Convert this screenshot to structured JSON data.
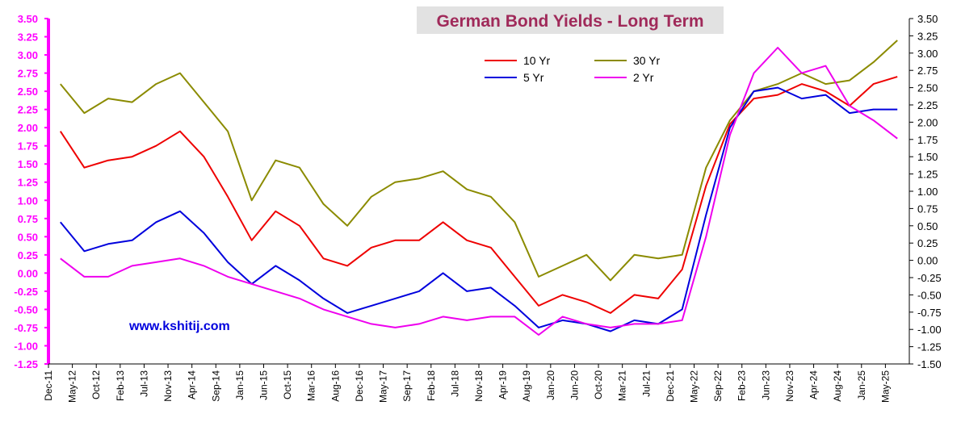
{
  "chart_data": {
    "type": "line",
    "title": "German Bond Yields - Long Term",
    "watermark": "www.kshitij.com",
    "ylim": [
      -1.25,
      3.5
    ],
    "ylim_right": [
      -1.5,
      3.5
    ],
    "y_ticks_left": [
      "3.50",
      "3.25",
      "3.00",
      "2.75",
      "2.50",
      "2.25",
      "2.00",
      "1.75",
      "1.50",
      "1.25",
      "1.00",
      "0.75",
      "0.50",
      "0.25",
      "0.00",
      "-0.25",
      "-0.50",
      "-0.75",
      "-1.00",
      "-1.25"
    ],
    "y_ticks_right": [
      "3.50",
      "3.25",
      "3.00",
      "2.75",
      "2.50",
      "2.25",
      "2.00",
      "1.75",
      "1.50",
      "1.25",
      "1.00",
      "0.75",
      "0.50",
      "0.25",
      "0.00",
      "-0.25",
      "-0.50",
      "-0.75",
      "-1.00",
      "-1.25",
      "-1.50"
    ],
    "categories": [
      "Dec-11",
      "May-12",
      "Oct-12",
      "Feb-13",
      "Jul-13",
      "Nov-13",
      "Apr-14",
      "Sep-14",
      "Jan-15",
      "Jun-15",
      "Oct-15",
      "Mar-16",
      "Aug-16",
      "Dec-16",
      "May-17",
      "Sep-17",
      "Feb-18",
      "Jul-18",
      "Nov-18",
      "Apr-19",
      "Aug-19",
      "Jan-20",
      "Jun-20",
      "Oct-20",
      "Mar-21",
      "Jul-21",
      "Dec-21",
      "May-22",
      "Sep-22",
      "Feb-23",
      "Jun-23",
      "Nov-23",
      "Apr-24",
      "Aug-24",
      "Jan-25",
      "May-25"
    ],
    "legend_placement": "top-center",
    "series": [
      {
        "name": "10 Yr",
        "color": "#ee0000",
        "values": [
          1.95,
          1.45,
          1.55,
          1.6,
          1.75,
          1.95,
          1.6,
          1.05,
          0.45,
          0.85,
          0.65,
          0.2,
          0.1,
          0.35,
          0.45,
          0.45,
          0.7,
          0.45,
          0.35,
          -0.05,
          -0.45,
          -0.3,
          -0.4,
          -0.55,
          -0.3,
          -0.35,
          0.05,
          1.2,
          2.05,
          2.4,
          2.45,
          2.6,
          2.5,
          2.3,
          2.6,
          2.7
        ]
      },
      {
        "name": "30 Yr",
        "color": "#8b8b00",
        "values": [
          2.6,
          2.2,
          2.4,
          2.35,
          2.6,
          2.75,
          2.35,
          1.95,
          1.0,
          1.55,
          1.45,
          0.95,
          0.65,
          1.05,
          1.25,
          1.3,
          1.4,
          1.15,
          1.05,
          0.7,
          -0.05,
          0.1,
          0.25,
          -0.1,
          0.25,
          0.2,
          0.25,
          1.45,
          2.1,
          2.5,
          2.6,
          2.75,
          2.6,
          2.65,
          2.9,
          3.2
        ]
      },
      {
        "name": "5 Yr",
        "color": "#0000dd",
        "values": [
          0.7,
          0.3,
          0.4,
          0.45,
          0.7,
          0.85,
          0.55,
          0.15,
          -0.15,
          0.1,
          -0.1,
          -0.35,
          -0.55,
          -0.45,
          -0.35,
          -0.25,
          0.0,
          -0.25,
          -0.2,
          -0.45,
          -0.75,
          -0.65,
          -0.7,
          -0.8,
          -0.65,
          -0.7,
          -0.5,
          0.8,
          2.0,
          2.5,
          2.55,
          2.4,
          2.45,
          2.2,
          2.25,
          2.25
        ]
      },
      {
        "name": "2 Yr",
        "color": "#ee00ee",
        "values": [
          0.2,
          -0.05,
          -0.05,
          0.1,
          0.15,
          0.2,
          0.1,
          -0.05,
          -0.15,
          -0.25,
          -0.35,
          -0.5,
          -0.6,
          -0.7,
          -0.75,
          -0.7,
          -0.6,
          -0.65,
          -0.6,
          -0.6,
          -0.85,
          -0.6,
          -0.7,
          -0.75,
          -0.7,
          -0.7,
          -0.65,
          0.5,
          1.9,
          2.75,
          3.1,
          2.75,
          2.85,
          2.3,
          2.1,
          1.85
        ]
      }
    ]
  }
}
